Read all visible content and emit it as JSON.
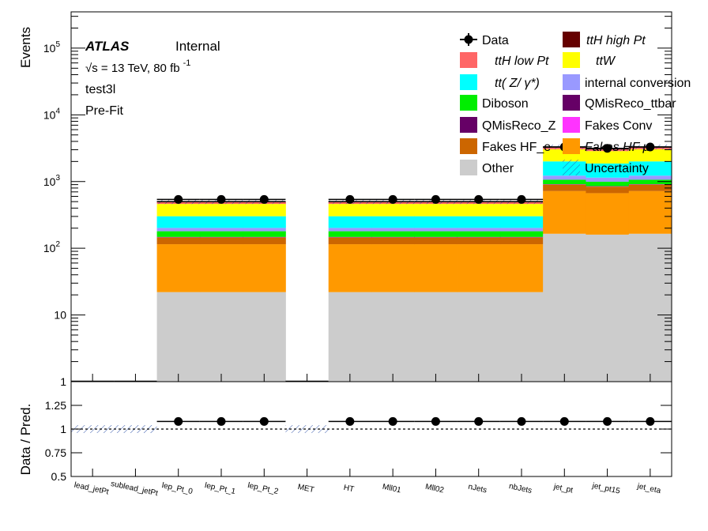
{
  "chart_data": {
    "type": "bar",
    "stacked": true,
    "ylabel_top": "Events",
    "ylabel_bottom": "Data / Pred.",
    "log_y_top": true,
    "ylim_top": [
      1,
      350000
    ],
    "ylim_bottom": [
      0.5,
      1.5
    ],
    "y_ticks_top": [
      {
        "value": 1,
        "label": "1"
      },
      {
        "value": 10,
        "label": "10"
      },
      {
        "value": 100,
        "label": "10",
        "sup": "2"
      },
      {
        "value": 1000,
        "label": "10",
        "sup": "3"
      },
      {
        "value": 10000,
        "label": "10",
        "sup": "4"
      },
      {
        "value": 100000,
        "label": "10",
        "sup": "5"
      }
    ],
    "y_ticks_bottom": [
      "0.5",
      "0.75",
      "1",
      "1.25"
    ],
    "categories": [
      "lead_jetPt",
      "sublead_jetPt",
      "lep_Pt_0",
      "lep_Pt_1",
      "lep_Pt_2",
      "MET",
      "HT",
      "Mll01",
      "Mll02",
      "nJets",
      "nbJets",
      "jet_pt",
      "jet_pt15",
      "jet_eta"
    ],
    "series": [
      {
        "name": "Other",
        "color": "#cccccc",
        "values": [
          0,
          0,
          22,
          22,
          22,
          0,
          22,
          22,
          22,
          22,
          22,
          165,
          160,
          165
        ]
      },
      {
        "name": "Fakes HF_μ",
        "color": "#ff9900",
        "values": [
          0,
          0,
          93,
          93,
          93,
          0,
          93,
          93,
          93,
          93,
          93,
          555,
          510,
          555
        ]
      },
      {
        "name": "Fakes HF_e",
        "color": "#cc6600",
        "values": [
          0,
          0,
          30,
          30,
          30,
          0,
          30,
          30,
          30,
          30,
          30,
          180,
          170,
          180
        ]
      },
      {
        "name": "Fakes Conv",
        "color": "#ff33ff",
        "values": [
          0,
          0,
          1,
          1,
          1,
          0,
          1,
          1,
          1,
          1,
          1,
          5,
          5,
          5
        ]
      },
      {
        "name": "QMisReco_Z",
        "color": "#660066",
        "values": [
          0,
          0,
          1,
          1,
          1,
          0,
          1,
          1,
          1,
          1,
          1,
          5,
          5,
          5
        ]
      },
      {
        "name": "QMisReco_ttbar",
        "color": "#660066",
        "values": [
          0,
          0,
          1,
          1,
          1,
          0,
          1,
          1,
          1,
          1,
          1,
          5,
          5,
          5
        ]
      },
      {
        "name": "Diboson",
        "color": "#00ee00",
        "values": [
          0,
          0,
          32,
          32,
          32,
          0,
          32,
          32,
          32,
          32,
          32,
          150,
          140,
          150
        ]
      },
      {
        "name": "internal conversion",
        "color": "#9999ff",
        "values": [
          0,
          0,
          22,
          22,
          22,
          0,
          22,
          22,
          22,
          22,
          22,
          160,
          150,
          160
        ]
      },
      {
        "name": "ttZ/γ*",
        "color": "#00ffff",
        "values": [
          0,
          0,
          100,
          100,
          100,
          0,
          100,
          100,
          100,
          100,
          100,
          780,
          720,
          780
        ]
      },
      {
        "name": "ttW",
        "color": "#ffff00",
        "values": [
          0,
          0,
          160,
          160,
          160,
          0,
          160,
          160,
          160,
          160,
          160,
          1050,
          1000,
          1050
        ]
      },
      {
        "name": "ttH low Pt",
        "color": "#ff6666",
        "values": [
          0,
          0,
          30,
          30,
          30,
          0,
          30,
          30,
          30,
          30,
          30,
          180,
          180,
          180
        ]
      },
      {
        "name": "ttH high Pt",
        "color": "#660000",
        "values": [
          0,
          0,
          8,
          8,
          8,
          0,
          8,
          8,
          8,
          8,
          8,
          60,
          60,
          60
        ]
      }
    ],
    "data_values": [
      0,
      0,
      540,
      540,
      540,
      0,
      540,
      540,
      540,
      540,
      540,
      3300,
      3150,
      3300
    ],
    "ratio_values": [
      null,
      null,
      1.08,
      1.08,
      1.08,
      null,
      1.08,
      1.08,
      1.08,
      1.08,
      1.08,
      1.08,
      1.08,
      1.08
    ],
    "ratio_reference": 1
  },
  "annotations": {
    "atlas": "ATLAS",
    "internal": "Internal",
    "energy": "√s = 13 TeV, 80 fb",
    "energy_sup": "-1",
    "region": "test3l",
    "stage": "Pre-Fit"
  },
  "legend": {
    "data": "Data",
    "tth_high": "ttH   high  Pt",
    "tth_low": "ttH   low  Pt",
    "ttw": "ttW",
    "ttz": "tt(  Z/  γ*)",
    "int_conv": "internal conversion",
    "diboson": "Diboson",
    "qmis_ttbar": "QMisReco_ttbar",
    "qmis_z": "QMisReco_Z",
    "fakes_conv": "Fakes Conv",
    "fakes_hf_e": "Fakes HF_e",
    "fakes_hf_mu": "Fakes HF μ",
    "other": "Other",
    "uncertainty": "Uncertainty",
    "colors": {
      "tth_high": "#660000",
      "tth_low": "#ff6666",
      "ttw": "#ffff00",
      "ttz": "#00ffff",
      "int_conv": "#9999ff",
      "diboson": "#00ee00",
      "qmis_ttbar": "#660066",
      "qmis_z": "#660066",
      "fakes_conv": "#ff33ff",
      "fakes_hf_e": "#cc6600",
      "fakes_hf_mu": "#ff9900",
      "other": "#cccccc"
    }
  }
}
